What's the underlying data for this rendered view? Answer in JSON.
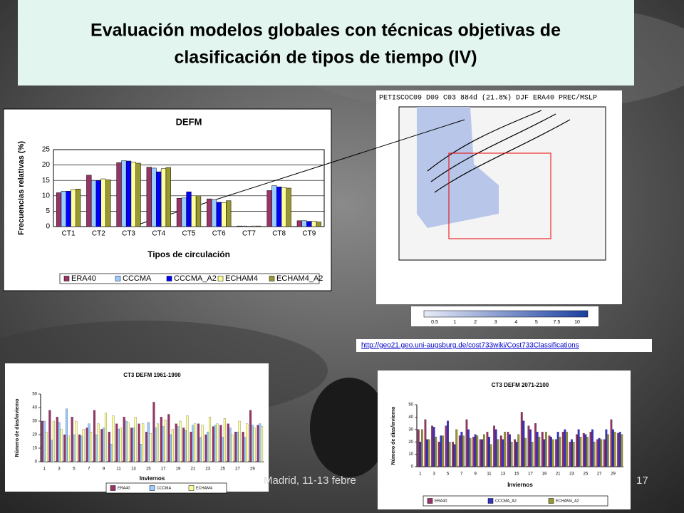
{
  "title": "Evaluación modelos globales con técnicas objetivas de clasificación de tipos de tiempo (IV)",
  "url": "http://geo21.geo.uni-augsburg.de/cost733wiki/Cost733Classifications",
  "footer": "Madrid, 11-13 febre",
  "page_number": "17",
  "map": {
    "header": "PETISCOC09 D09 C03 884d (21.8%) DJF ERA40 PREC/MSLP",
    "colorbar_labels": [
      0.5,
      1,
      2,
      3,
      4,
      5,
      7.5,
      10
    ]
  },
  "chart_data": [
    {
      "type": "bar",
      "title": "DEFM",
      "xlabel": "Tipos de circulación",
      "ylabel": "Frecuencias relativas (%)",
      "categories": [
        "CT1",
        "CT2",
        "CT3",
        "CT4",
        "CT5",
        "CT6",
        "CT7",
        "CT8",
        "CT9"
      ],
      "ylim": [
        0,
        25
      ],
      "yticks": [
        0,
        5,
        10,
        15,
        20,
        25
      ],
      "grid": true,
      "series": [
        {
          "name": "ERA40",
          "color": "#993366",
          "values": [
            11,
            16.7,
            20.8,
            19.3,
            9.2,
            9,
            0.2,
            11.7,
            1.9
          ]
        },
        {
          "name": "CCCMA",
          "color": "#99ccff",
          "values": [
            11.5,
            15,
            21.4,
            19,
            9.3,
            8.8,
            0.2,
            13.3,
            1.9
          ]
        },
        {
          "name": "CCCMA_A2",
          "color": "#0000ff",
          "values": [
            11.5,
            15,
            21.3,
            17.8,
            11.3,
            7.9,
            0.1,
            12.9,
            1.7
          ]
        },
        {
          "name": "ECHAM4",
          "color": "#ffff99",
          "values": [
            12,
            15.5,
            21,
            18.8,
            10,
            7.8,
            0.2,
            12.7,
            1.8
          ]
        },
        {
          "name": "ECHAM4_A2",
          "color": "#999933",
          "values": [
            12.2,
            15.2,
            20.6,
            19.2,
            10,
            8.4,
            0.2,
            12.5,
            1.5
          ]
        }
      ]
    },
    {
      "type": "bar",
      "title": "CT3 DEFM 1961-1990",
      "xlabel": "Inviernos",
      "ylabel": "Número de días/invierno",
      "categories": [
        1,
        null,
        3,
        null,
        5,
        null,
        7,
        null,
        9,
        null,
        11,
        null,
        13,
        null,
        15,
        null,
        17,
        null,
        19,
        null,
        21,
        null,
        23,
        null,
        25,
        null,
        27,
        null,
        29,
        null
      ],
      "ylim": [
        0,
        50
      ],
      "yticks": [
        0,
        10,
        20,
        30,
        40,
        50
      ],
      "grid": false,
      "series": [
        {
          "name": "ERA40",
          "color": "#993366",
          "values": [
            30,
            38,
            33,
            20,
            33,
            20,
            25,
            38,
            24,
            22,
            28,
            33,
            25,
            28,
            22,
            44,
            33,
            35,
            28,
            25,
            22,
            28,
            20,
            26,
            27,
            28,
            22,
            22,
            38,
            27
          ]
        },
        {
          "name": "CCCMA",
          "color": "#99ccff",
          "values": [
            30,
            16,
            29,
            39,
            20,
            19,
            28,
            20,
            25,
            13,
            24,
            30,
            25,
            13,
            29,
            25,
            26,
            20,
            26,
            23,
            27,
            18,
            22,
            27,
            18,
            25,
            22,
            18,
            27,
            28
          ]
        },
        {
          "name": "ECHAM4",
          "color": "#ffff99",
          "values": [
            22,
            30,
            24,
            19,
            30,
            24,
            22,
            28,
            36,
            34,
            25,
            29,
            33,
            28,
            21,
            28,
            31,
            24,
            30,
            34,
            28,
            27,
            33,
            28,
            32,
            20,
            30,
            28,
            25,
            26
          ]
        }
      ]
    },
    {
      "type": "bar",
      "title": "CT3 DEFM 2071-2100",
      "xlabel": "Inviernos",
      "ylabel": "Número de días/invierno",
      "categories": [
        1,
        null,
        3,
        null,
        5,
        null,
        7,
        null,
        9,
        null,
        11,
        null,
        13,
        null,
        15,
        null,
        17,
        null,
        19,
        null,
        21,
        null,
        23,
        null,
        25,
        null,
        27,
        null,
        29,
        null
      ],
      "ylim": [
        0,
        50
      ],
      "yticks": [
        0,
        10,
        20,
        30,
        40,
        50
      ],
      "grid": false,
      "series": [
        {
          "name": "ERA40",
          "color": "#993366",
          "values": [
            30,
            38,
            33,
            20,
            33,
            20,
            25,
            38,
            24,
            22,
            28,
            33,
            25,
            28,
            22,
            44,
            33,
            35,
            28,
            25,
            22,
            28,
            20,
            26,
            27,
            28,
            22,
            22,
            38,
            27
          ]
        },
        {
          "name": "CCCMA_A2",
          "color": "#3333cc",
          "values": [
            20,
            22,
            32,
            25,
            37,
            18,
            28,
            30,
            26,
            22,
            24,
            30,
            22,
            26,
            20,
            37,
            30,
            28,
            22,
            24,
            28,
            30,
            22,
            30,
            26,
            30,
            23,
            30,
            30,
            28
          ]
        },
        {
          "name": "ECHAM4_A2",
          "color": "#999933",
          "values": [
            30,
            22,
            24,
            25,
            20,
            30,
            25,
            23,
            25,
            26,
            18,
            22,
            28,
            20,
            26,
            23,
            20,
            24,
            28,
            22,
            24,
            28,
            20,
            24,
            24,
            20,
            22,
            26,
            28,
            26
          ]
        }
      ]
    }
  ]
}
